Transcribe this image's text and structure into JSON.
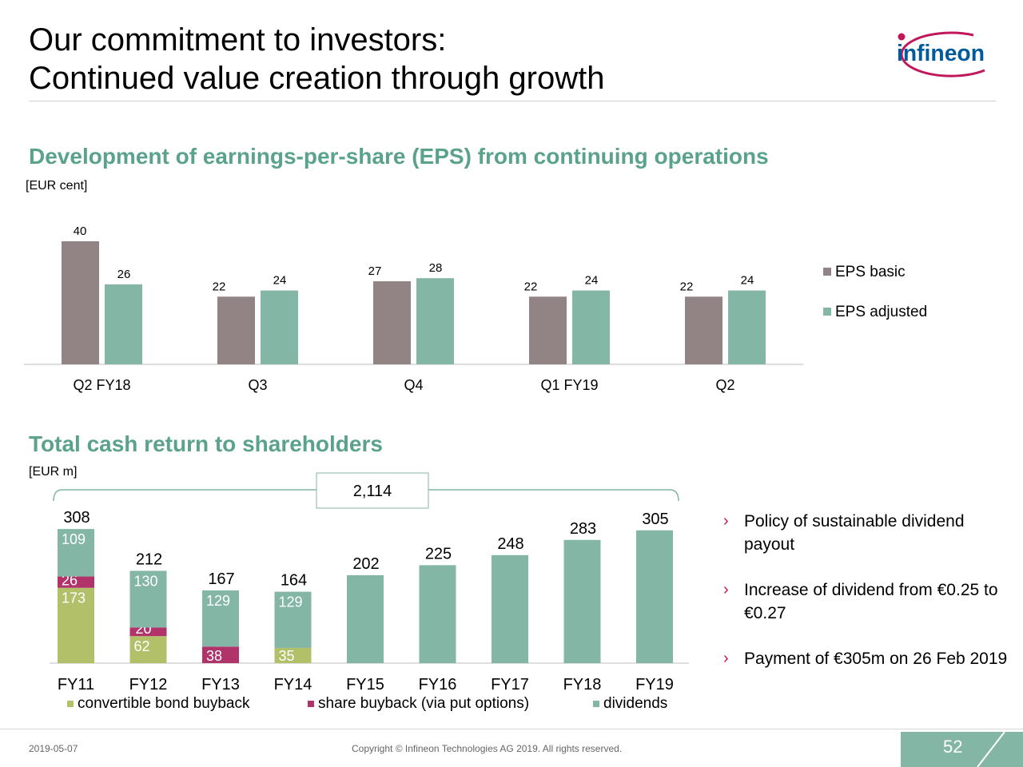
{
  "header": {
    "title_line1": "Our commitment to investors:",
    "title_line2": "Continued value creation through growth",
    "logo_text": "infineon"
  },
  "colors": {
    "eps_basic": "#928384",
    "eps_adjusted": "#84b6a5",
    "convertible": "#b2c06a",
    "share_buyback": "#b0336a",
    "dividends": "#84b6a5",
    "heading": "#5aa28c",
    "chevron": "#c0185b"
  },
  "eps_section": {
    "heading": "Development of earnings-per-share (EPS) from continuing operations",
    "unit": "[EUR cent]"
  },
  "cash_section": {
    "heading": "Total cash return to shareholders",
    "unit": "[EUR m]",
    "bracket_total": "2,114"
  },
  "chart_data": [
    {
      "type": "bar",
      "title": "Development of earnings-per-share (EPS) from continuing operations",
      "ylabel": "[EUR cent]",
      "categories": [
        "Q2 FY18",
        "Q3",
        "Q4",
        "Q1 FY19",
        "Q2"
      ],
      "series": [
        {
          "name": "EPS basic",
          "values": [
            40,
            22,
            27,
            22,
            22
          ]
        },
        {
          "name": "EPS adjusted",
          "values": [
            26,
            24,
            28,
            24,
            24
          ]
        }
      ],
      "ylim": [
        0,
        40
      ],
      "legend": "right"
    },
    {
      "type": "bar",
      "stacked": true,
      "title": "Total cash return to shareholders",
      "ylabel": "[EUR m]",
      "categories": [
        "FY11",
        "FY12",
        "FY13",
        "FY14",
        "FY15",
        "FY16",
        "FY17",
        "FY18",
        "FY19"
      ],
      "series": [
        {
          "name": "convertible bond buyback",
          "values": [
            173,
            62,
            0,
            35,
            0,
            0,
            0,
            0,
            0
          ]
        },
        {
          "name": "share buyback (via put options)",
          "values": [
            26,
            20,
            38,
            0,
            0,
            0,
            0,
            0,
            0
          ]
        },
        {
          "name": "dividends",
          "values": [
            109,
            130,
            129,
            129,
            202,
            225,
            248,
            283,
            305
          ]
        }
      ],
      "totals": [
        308,
        212,
        167,
        164,
        202,
        225,
        248,
        283,
        305
      ],
      "bracket_label": "2,114",
      "legend": "bottom"
    }
  ],
  "bullets": [
    "Policy of sustainable dividend payout",
    "Increase of dividend from €0.25 to €0.27",
    "Payment of €305m on 26 Feb 2019"
  ],
  "footer": {
    "date": "2019-05-07",
    "copyright": "Copyright © Infineon Technologies AG 2019. All rights reserved.",
    "page_number": "52"
  }
}
